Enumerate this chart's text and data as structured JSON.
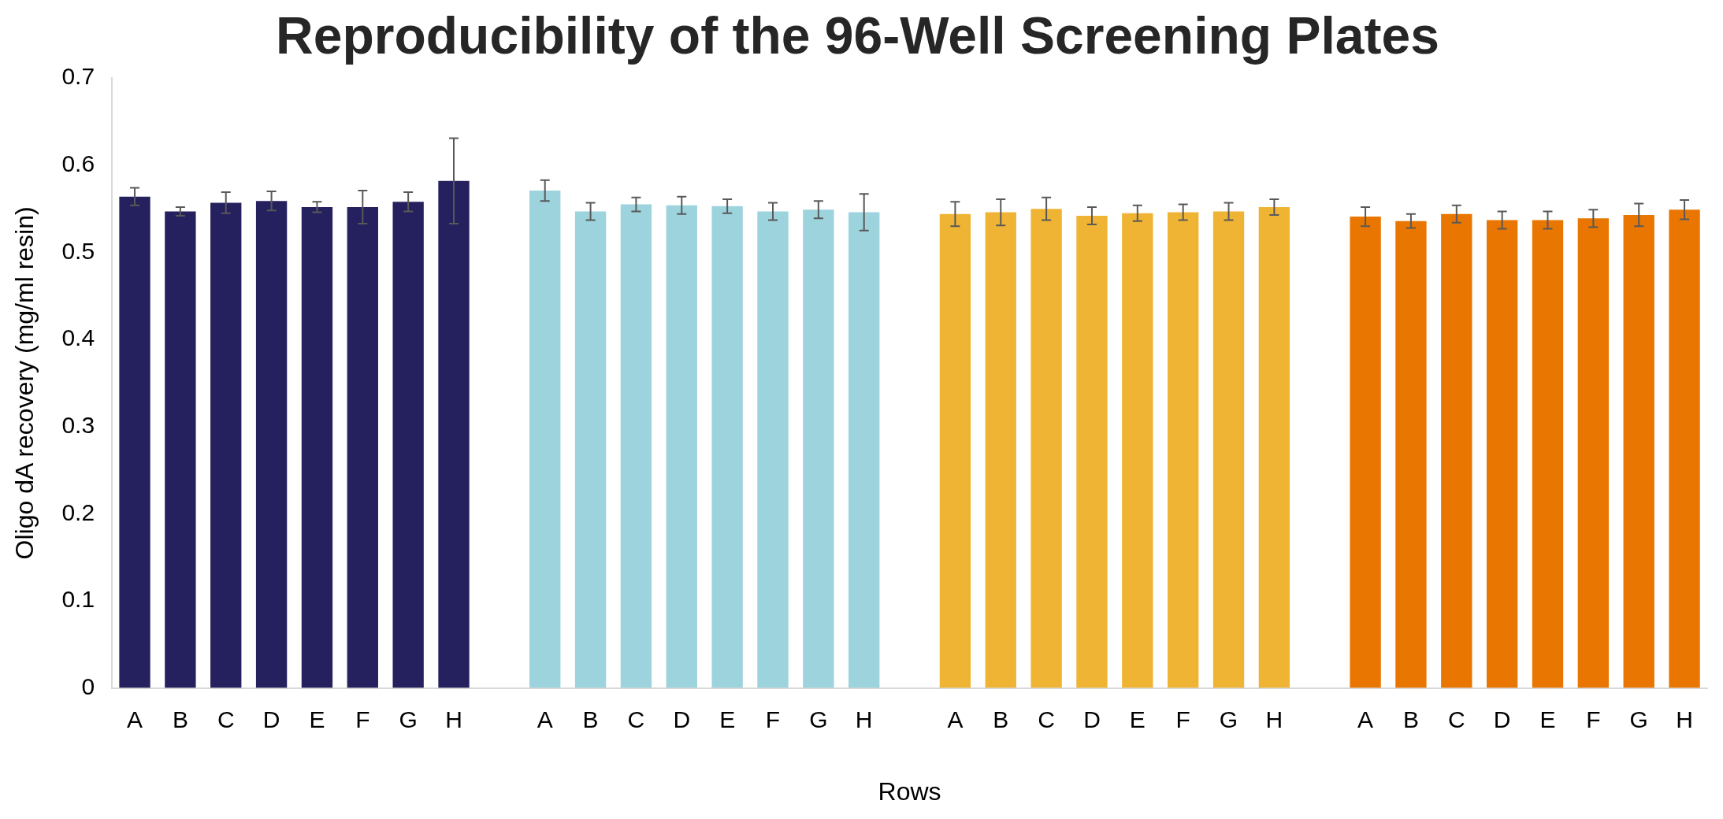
{
  "chart_data": {
    "type": "bar",
    "title": "Reproducibility of the 96-Well Screening Plates",
    "xlabel": "Rows",
    "ylabel": "Oligo dA recovery (mg/ml resin)",
    "categories": [
      "A",
      "B",
      "C",
      "D",
      "E",
      "F",
      "G",
      "H",
      null,
      "A",
      "B",
      "C",
      "D",
      "E",
      "F",
      "G",
      "H",
      null,
      "A",
      "B",
      "C",
      "D",
      "E",
      "F",
      "G",
      "H",
      null,
      "A",
      "B",
      "C",
      "D",
      "E",
      "F",
      "G",
      "H"
    ],
    "values": [
      0.564,
      0.547,
      0.557,
      0.559,
      0.552,
      0.552,
      0.558,
      0.582,
      null,
      0.571,
      0.547,
      0.555,
      0.554,
      0.553,
      0.547,
      0.549,
      0.546,
      null,
      0.544,
      0.546,
      0.55,
      0.542,
      0.545,
      0.546,
      0.547,
      0.552,
      null,
      0.541,
      0.536,
      0.544,
      0.537,
      0.537,
      0.539,
      0.543,
      0.549
    ],
    "errors": [
      0.01,
      0.005,
      0.012,
      0.011,
      0.006,
      0.019,
      0.011,
      0.049,
      null,
      0.012,
      0.01,
      0.008,
      0.01,
      0.008,
      0.01,
      0.01,
      0.021,
      null,
      0.014,
      0.015,
      0.013,
      0.01,
      0.009,
      0.009,
      0.01,
      0.009,
      null,
      0.011,
      0.008,
      0.01,
      0.01,
      0.01,
      0.01,
      0.013,
      0.011
    ],
    "colors": [
      "#25205e",
      "#25205e",
      "#25205e",
      "#25205e",
      "#25205e",
      "#25205e",
      "#25205e",
      "#25205e",
      null,
      "#9cd3dc",
      "#9cd3dc",
      "#9cd3dc",
      "#9cd3dc",
      "#9cd3dc",
      "#9cd3dc",
      "#9cd3dc",
      "#9cd3dc",
      null,
      "#f0b434",
      "#f0b434",
      "#f0b434",
      "#f0b434",
      "#f0b434",
      "#f0b434",
      "#f0b434",
      "#f0b434",
      null,
      "#e97600",
      "#e97600",
      "#e97600",
      "#e97600",
      "#e97600",
      "#e97600",
      "#e97600",
      "#e97600"
    ],
    "ylim": [
      0,
      0.7
    ],
    "yticks": [
      0,
      0.1,
      0.2,
      0.3,
      0.4,
      0.5,
      0.6,
      0.7
    ],
    "grid": false,
    "legend": false
  }
}
